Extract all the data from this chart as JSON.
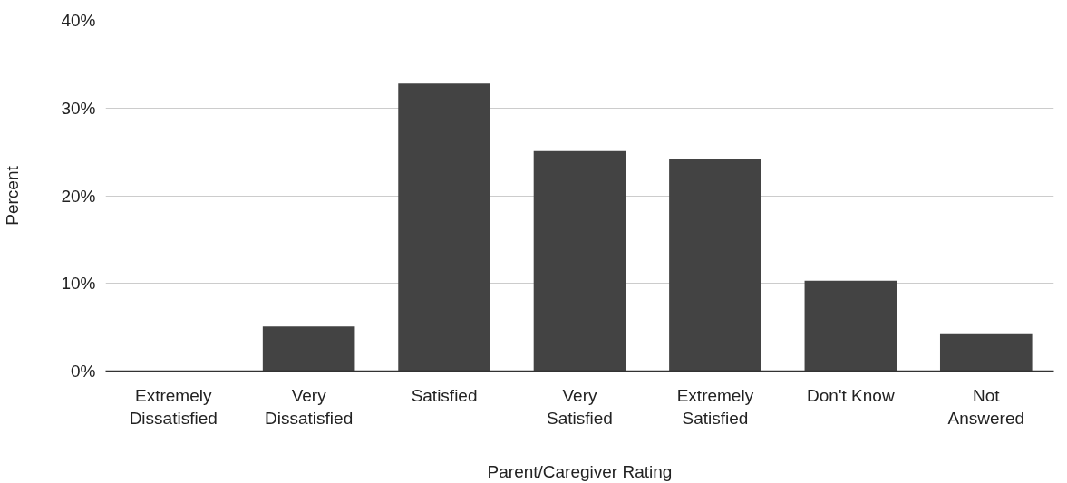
{
  "chart_data": {
    "type": "bar",
    "xlabel": "Parent/Caregiver Rating",
    "ylabel": "Percent",
    "categories": [
      "Extremely\nDissatisfied",
      "Very\nDissatisfied",
      "Satisfied",
      "Very\nSatisfied",
      "Extremely\nSatisfied",
      "Don't Know",
      "Not\nAnswered"
    ],
    "values": [
      0,
      5.1,
      32.8,
      25.1,
      24.2,
      10.3,
      4.2
    ],
    "color": "#434343",
    "ylim": [
      0,
      40
    ],
    "yticks": [
      {
        "value": 0,
        "label": "0%"
      },
      {
        "value": 10,
        "label": "10%"
      },
      {
        "value": 20,
        "label": "20%"
      },
      {
        "value": 30,
        "label": "30%"
      },
      {
        "value": 40,
        "label": "40%"
      }
    ],
    "grid": "y"
  }
}
